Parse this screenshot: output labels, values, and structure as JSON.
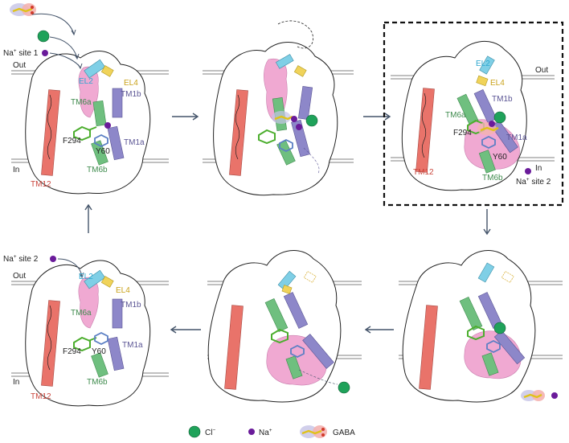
{
  "labels": {
    "out": "Out",
    "in": "In",
    "na_site_1": "Na",
    "na_site_1_sup": "+",
    "na_site_1_tail": " site 1",
    "na_site_2": "Na",
    "na_site_2_sup": "+",
    "na_site_2_tail": " site 2",
    "el2": "EL2",
    "el4": "EL4",
    "tm6a": "TM6a",
    "tm6b": "TM6b",
    "tm1a": "TM1a",
    "tm1b": "TM1b",
    "tm12": "TM12",
    "f294": "F294",
    "y60": "Y60"
  },
  "legend": {
    "cl": "Cl",
    "cl_sup": "−",
    "na": "Na",
    "na_sup": "+",
    "gaba": "GABA"
  },
  "colors": {
    "tm12": "#e9736a",
    "tm1": "#8d87c9",
    "tm6": "#6fbf7f",
    "el2": "#7fcfe6",
    "el4": "#f0d35a",
    "pink": "#f0a9d2",
    "chloride": "#1fa25a",
    "sodium": "#6a1b9a",
    "arrow": "#44546a",
    "membrane": "#9a9a9a",
    "f294": "#4cae2e",
    "y60": "#5b7fc4"
  }
}
